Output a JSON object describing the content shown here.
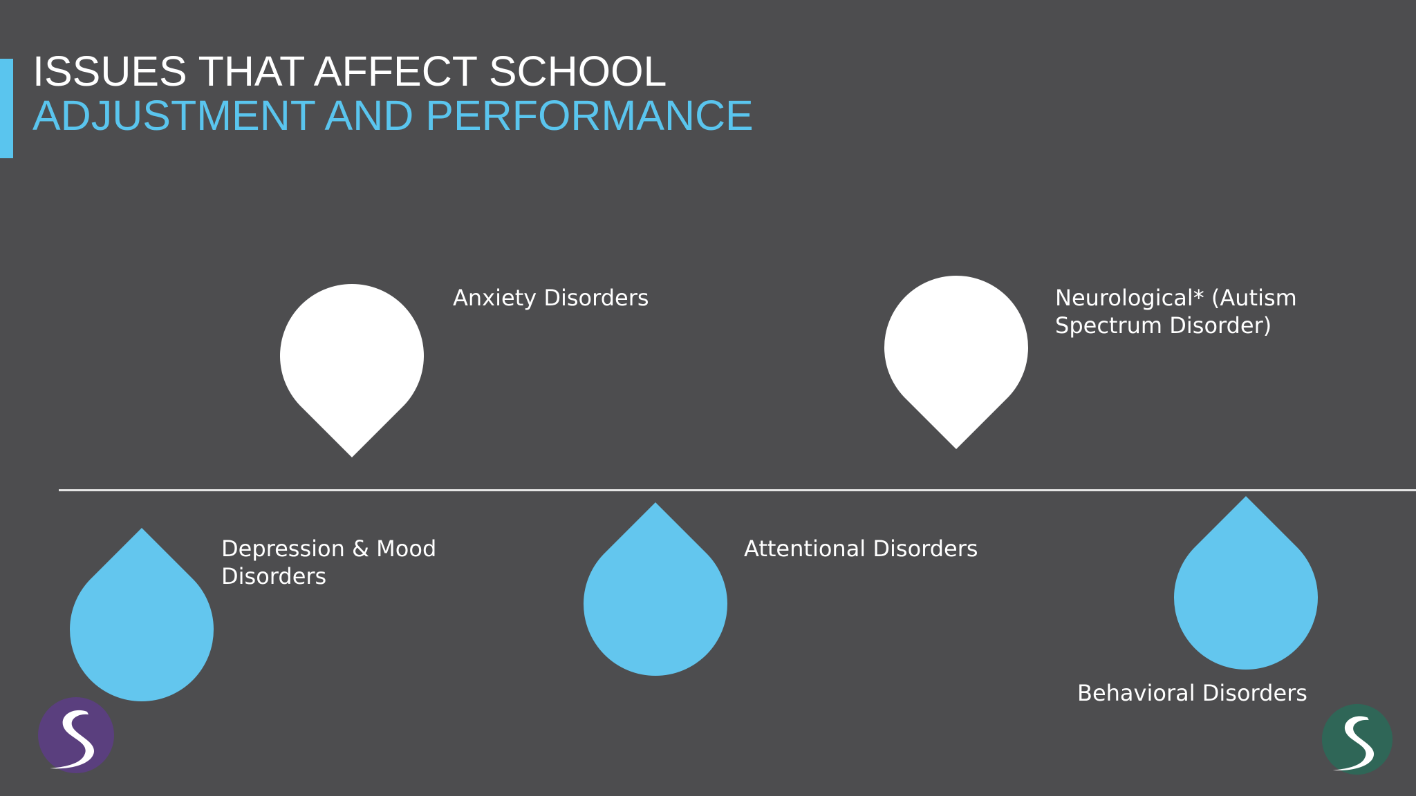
{
  "slide": {
    "title_line1": "ISSUES THAT AFFECT SCHOOL",
    "title_line2": "ADJUSTMENT AND PERFORMANCE",
    "accent_color": "#5ac5ee",
    "background_color": "#4d4d4f"
  },
  "timeline": {
    "items": [
      {
        "label_lines": [
          "Depression & Mood",
          "Disorders"
        ],
        "marker_color": "#63c6ee",
        "marker": "below-line"
      },
      {
        "label_lines": [
          "Anxiety Disorders"
        ],
        "marker_color": "#ffffff",
        "marker": "above-line"
      },
      {
        "label_lines": [
          "Attentional Disorders"
        ],
        "marker_color": "#63c6ee",
        "marker": "below-line"
      },
      {
        "label_lines": [
          "Neurological* (Autism",
          "Spectrum Disorder)"
        ],
        "marker_color": "#ffffff",
        "marker": "above-line"
      },
      {
        "label_lines": [
          "Behavioral Disorders"
        ],
        "marker_color": "#63c6ee",
        "marker": "below-line"
      }
    ]
  },
  "logos": {
    "left": {
      "icon": "s-road-logo-icon",
      "color": "#5a3f7e"
    },
    "right": {
      "icon": "s-road-logo-icon",
      "color": "#2f6657"
    }
  }
}
